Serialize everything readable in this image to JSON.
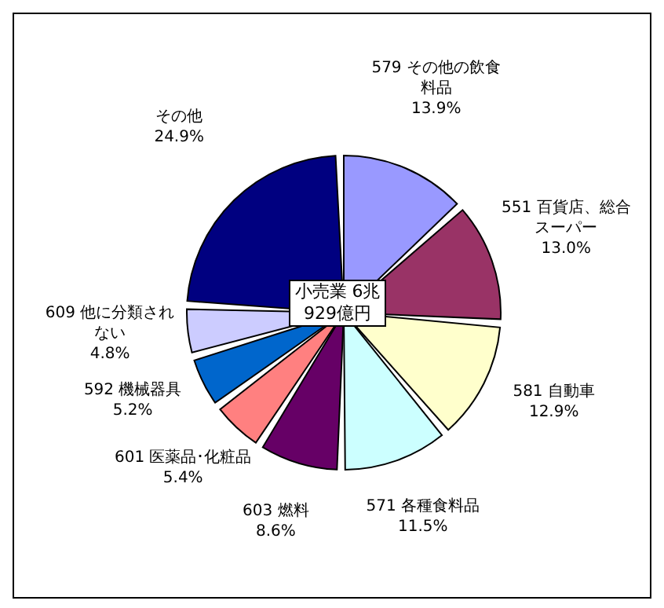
{
  "chart_data": {
    "type": "pie",
    "annotations": [
      "小売業 6兆929億円"
    ],
    "categories": [
      "579 その他の飲食料品",
      "551 百貨店、総合スーパー",
      "581 自動車",
      "571 各種食料品",
      "603 燃料",
      "601 医薬品･化粧品",
      "592 機械器具",
      "609 他に分類されない",
      "その他"
    ],
    "values": [
      13.9,
      13.0,
      12.9,
      11.5,
      8.6,
      5.4,
      5.2,
      4.8,
      24.9
    ],
    "value_labels": [
      "13.9%",
      "13.0%",
      "12.9%",
      "11.5%",
      "8.6%",
      "5.4%",
      "5.2%",
      "4.8%",
      "24.9%"
    ],
    "colors": [
      "#9999ff",
      "#993366",
      "#ffffcc",
      "#ccffff",
      "#660066",
      "#ff8080",
      "#0066cc",
      "#ccccff",
      "#000080"
    ]
  }
}
